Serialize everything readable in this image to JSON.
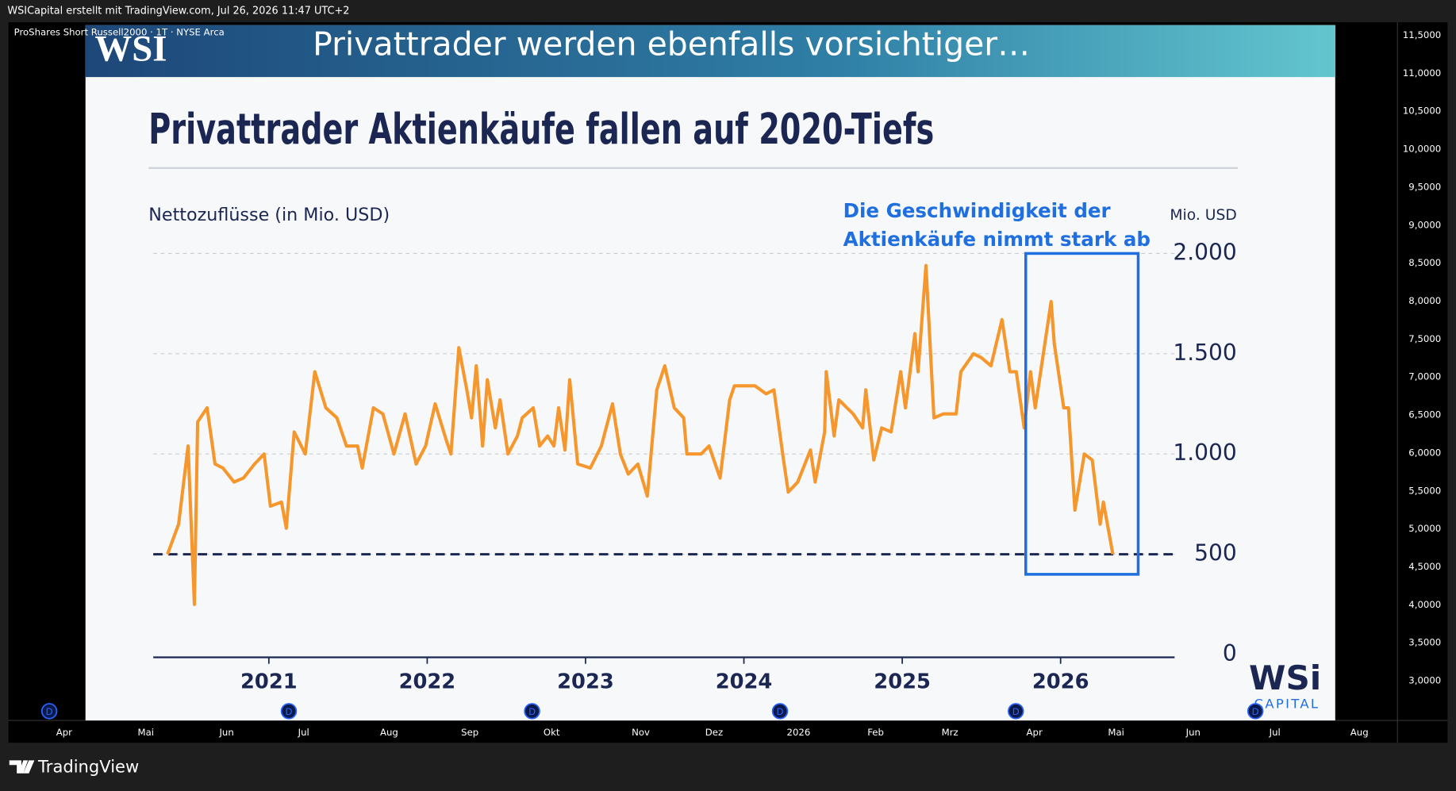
{
  "header": {
    "attribution": "WSICapital erstellt mit TradingView.com, Jul 26, 2026 11:47 UTC+2",
    "symbol": "ProShares Short Russell2000 · 1T · NYSE Arca"
  },
  "banner": {
    "logo": "WSI",
    "title": "Privattrader werden ebenfalls vorsichtiger…"
  },
  "chart_data": {
    "type": "line",
    "title": "Privattrader Aktienkäufe fallen auf 2020-Tiefs",
    "y_label": "Nettozuflüsse (in Mio. USD)",
    "y_unit_label": "Mio. USD",
    "annotation": [
      "Die Geschwindigkeit der",
      "Aktienkäufe nimmt stark ab"
    ],
    "color": "#f5972c",
    "x": [
      2020.36,
      2020.43,
      2020.49,
      2020.53,
      2020.55,
      2020.61,
      2020.66,
      2020.71,
      2020.78,
      2020.84,
      2020.91,
      2020.97,
      2021.01,
      2021.08,
      2021.11,
      2021.16,
      2021.23,
      2021.29,
      2021.36,
      2021.43,
      2021.49,
      2021.56,
      2021.59,
      2021.66,
      2021.72,
      2021.79,
      2021.86,
      2021.93,
      2021.99,
      2022.05,
      2022.12,
      2022.15,
      2022.2,
      2022.25,
      2022.28,
      2022.31,
      2022.35,
      2022.38,
      2022.43,
      2022.46,
      2022.51,
      2022.57,
      2022.6,
      2022.67,
      2022.71,
      2022.76,
      2022.8,
      2022.83,
      2022.87,
      2022.9,
      2022.95,
      2023.03,
      2023.1,
      2023.17,
      2023.22,
      2023.27,
      2023.33,
      2023.39,
      2023.45,
      2023.5,
      2023.56,
      2023.62,
      2023.64,
      2023.73,
      2023.78,
      2023.85,
      2023.91,
      2023.94,
      2024.0,
      2024.07,
      2024.14,
      2024.19,
      2024.25,
      2024.28,
      2024.34,
      2024.42,
      2024.45,
      2024.51,
      2024.52,
      2024.57,
      2024.6,
      2024.69,
      2024.75,
      2024.77,
      2024.82,
      2024.87,
      2024.93,
      2024.99,
      2025.02,
      2025.08,
      2025.1,
      2025.15,
      2025.2,
      2025.26,
      2025.34,
      2025.37,
      2025.45,
      2025.5,
      2025.56,
      2025.63,
      2025.68,
      2025.72,
      2025.77,
      2025.81,
      2025.84,
      2025.88,
      2025.94,
      2025.96,
      2026.02,
      2026.05,
      2026.09,
      2026.15,
      2026.2,
      2026.25,
      2026.27,
      2026.33
    ],
    "values": [
      500,
      650,
      1040,
      250,
      1160,
      1230,
      950,
      930,
      860,
      880,
      950,
      1000,
      740,
      760,
      630,
      1110,
      1000,
      1410,
      1230,
      1180,
      1040,
      1040,
      930,
      1230,
      1200,
      1000,
      1200,
      950,
      1040,
      1250,
      1070,
      1000,
      1530,
      1320,
      1180,
      1440,
      1040,
      1370,
      1130,
      1270,
      1000,
      1090,
      1180,
      1230,
      1040,
      1090,
      1040,
      1230,
      1020,
      1370,
      950,
      930,
      1040,
      1250,
      1000,
      900,
      950,
      790,
      1320,
      1440,
      1230,
      1180,
      1000,
      1000,
      1040,
      880,
      1270,
      1340,
      1340,
      1340,
      1300,
      1320,
      970,
      810,
      860,
      1020,
      860,
      1110,
      1410,
      1090,
      1270,
      1200,
      1130,
      1320,
      970,
      1130,
      1110,
      1410,
      1230,
      1600,
      1410,
      1940,
      1180,
      1200,
      1200,
      1410,
      1500,
      1480,
      1440,
      1670,
      1410,
      1410,
      1130,
      1410,
      1230,
      1440,
      1760,
      1550,
      1230,
      1230,
      720,
      1000,
      970,
      650,
      760,
      500
    ],
    "xlim": [
      2020.27,
      2026.72
    ],
    "xticks": [
      2021,
      2022,
      2023,
      2024,
      2025,
      2026
    ],
    "ylim": [
      0,
      2000
    ],
    "yticks": [
      0,
      500,
      {
        "value": 1000,
        "label": "1.000"
      },
      {
        "value": 1500,
        "label": "1.500"
      },
      {
        "value": 2000,
        "label": "2.000"
      }
    ],
    "grid": true,
    "hline": 500,
    "highlight": {
      "x": [
        2025.78,
        2026.49
      ],
      "y": [
        400,
        2000
      ]
    }
  },
  "brand": {
    "name": "WSi",
    "sub": "CAPITAL"
  },
  "price_axis": [
    "11,5000",
    "11,0000",
    "10,5000",
    "10,0000",
    "9,5000",
    "9,0000",
    "8,5000",
    "8,0000",
    "7,5000",
    "7,0000",
    "6,5000",
    "6,0000",
    "5,5000",
    "5,0000",
    "4,5000",
    "4,0000",
    "3,5000",
    "3,0000"
  ],
  "time_axis": [
    "Apr",
    "Mai",
    "Jun",
    "Jul",
    "Aug",
    "Sep",
    "Okt",
    "Nov",
    "Dez",
    "2026",
    "Feb",
    "Mrz",
    "Apr",
    "Mai",
    "Jun",
    "Jul",
    "Aug"
  ],
  "markers": [
    "D",
    "D",
    "D",
    "D",
    "D",
    "D"
  ],
  "footer": {
    "logo": "TradingView"
  }
}
